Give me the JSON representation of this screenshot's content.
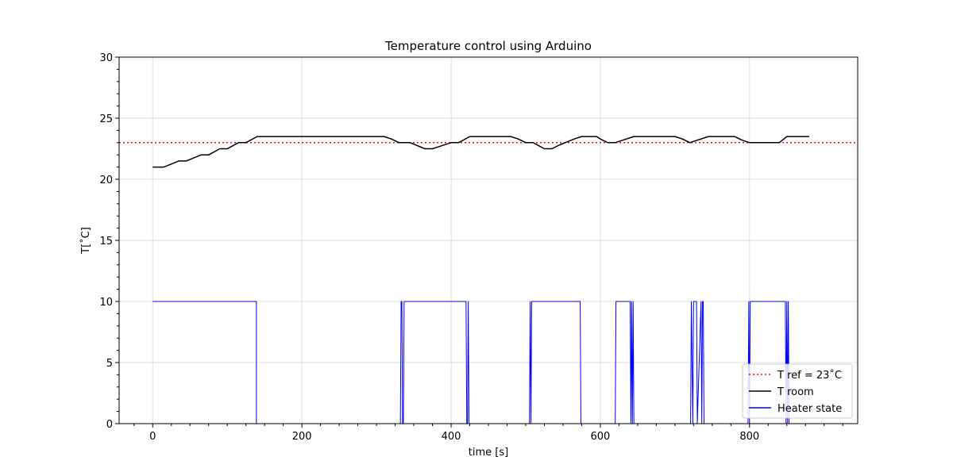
{
  "chart_data": {
    "type": "line",
    "title": "Temperature control using Arduino",
    "xlabel": "time [s]",
    "ylabel": "T[˚C]",
    "xlim": [
      -45,
      945
    ],
    "ylim": [
      0,
      30
    ],
    "x_ticks": [
      0,
      200,
      400,
      600,
      800
    ],
    "y_ticks": [
      0,
      5,
      10,
      15,
      20,
      25,
      30
    ],
    "grid": true,
    "legend_position": "lower-right",
    "series": [
      {
        "name": "T ref = 23˚C",
        "color": "#ff0000",
        "style": "dotted",
        "x": [
          -45,
          945
        ],
        "y": [
          23,
          23
        ]
      },
      {
        "name": "T room",
        "color": "#000000",
        "style": "solid",
        "x": [
          0,
          15,
          35,
          45,
          65,
          75,
          90,
          100,
          115,
          125,
          140,
          200,
          210,
          230,
          310,
          320,
          330,
          345,
          365,
          375,
          385,
          400,
          410,
          425,
          480,
          490,
          500,
          510,
          525,
          535,
          545,
          565,
          575,
          595,
          600,
          610,
          620,
          630,
          645,
          700,
          710,
          720,
          730,
          745,
          780,
          790,
          800,
          830,
          840,
          850,
          880
        ],
        "y": [
          21,
          21,
          21.5,
          21.5,
          22,
          22,
          22.5,
          22.5,
          23,
          23,
          23.5,
          23.5,
          23.5,
          23.5,
          23.5,
          23.3,
          23,
          23,
          22.5,
          22.5,
          22.7,
          23,
          23,
          23.5,
          23.5,
          23.3,
          23,
          23,
          22.5,
          22.5,
          22.8,
          23.3,
          23.5,
          23.5,
          23.3,
          23,
          23,
          23.2,
          23.5,
          23.5,
          23.3,
          23,
          23.2,
          23.5,
          23.5,
          23.2,
          23,
          23,
          23,
          23.5,
          23.5
        ]
      },
      {
        "name": "Heater state",
        "color": "#0000ff",
        "style": "solid",
        "x": [
          0,
          139,
          139,
          332,
          333,
          334,
          335,
          336,
          337,
          338,
          339,
          420,
          421,
          422,
          423,
          424,
          425,
          505,
          506,
          507,
          508,
          509,
          510,
          573,
          574,
          620,
          621,
          640,
          641,
          642,
          643,
          644,
          645,
          721,
          722,
          724,
          725,
          729,
          730,
          735,
          736,
          737,
          738,
          739,
          740,
          798,
          799,
          800,
          801,
          848,
          849,
          850,
          851,
          852,
          853
        ],
        "y": [
          10,
          10,
          0,
          0,
          10,
          10,
          0,
          0,
          10,
          10,
          10,
          10,
          0,
          0,
          10,
          0,
          0,
          0,
          10,
          0,
          10,
          10,
          10,
          10,
          0,
          0,
          10,
          10,
          0,
          10,
          0,
          10,
          0,
          0,
          10,
          0,
          10,
          10,
          0,
          10,
          0,
          10,
          10,
          0,
          0,
          0,
          10,
          0,
          10,
          10,
          0,
          10,
          0,
          10,
          0
        ]
      }
    ]
  }
}
